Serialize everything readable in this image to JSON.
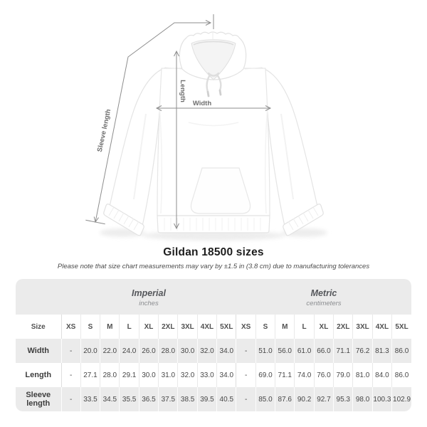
{
  "title": "Gildan 18500 sizes",
  "note": "Please note that size chart measurements may vary by ±1.5 in (3.8 cm) due to manufacturing tolerances",
  "illustration": {
    "labels": {
      "width": "Width",
      "length": "Length",
      "sleeve": "Sleeve length"
    }
  },
  "colors": {
    "annotation_line": "#8d8d8d",
    "annotation_text": "#6e6e6e",
    "card_background": "#ebebeb",
    "garment_outline": "#e4e4e4"
  },
  "table": {
    "size_header": "Size",
    "unit_groups": [
      {
        "label": "Imperial",
        "sublabel": "inches"
      },
      {
        "label": "Metric",
        "sublabel": "centimeters"
      }
    ],
    "sizes": [
      "XS",
      "S",
      "M",
      "L",
      "XL",
      "2XL",
      "3XL",
      "4XL",
      "5XL"
    ],
    "rows": [
      {
        "label": "Width",
        "imperial": [
          "-",
          "20.0",
          "22.0",
          "24.0",
          "26.0",
          "28.0",
          "30.0",
          "32.0",
          "34.0"
        ],
        "metric": [
          "-",
          "51.0",
          "56.0",
          "61.0",
          "66.0",
          "71.1",
          "76.2",
          "81.3",
          "86.0"
        ]
      },
      {
        "label": "Length",
        "imperial": [
          "-",
          "27.1",
          "28.0",
          "29.1",
          "30.0",
          "31.0",
          "32.0",
          "33.0",
          "34.0"
        ],
        "metric": [
          "-",
          "69.0",
          "71.1",
          "74.0",
          "76.0",
          "79.0",
          "81.0",
          "84.0",
          "86.0"
        ]
      },
      {
        "label": "Sleeve length",
        "imperial": [
          "-",
          "33.5",
          "34.5",
          "35.5",
          "36.5",
          "37.5",
          "38.5",
          "39.5",
          "40.5"
        ],
        "metric": [
          "-",
          "85.0",
          "87.6",
          "90.2",
          "92.7",
          "95.3",
          "98.0",
          "100.3",
          "102.9"
        ]
      }
    ]
  }
}
